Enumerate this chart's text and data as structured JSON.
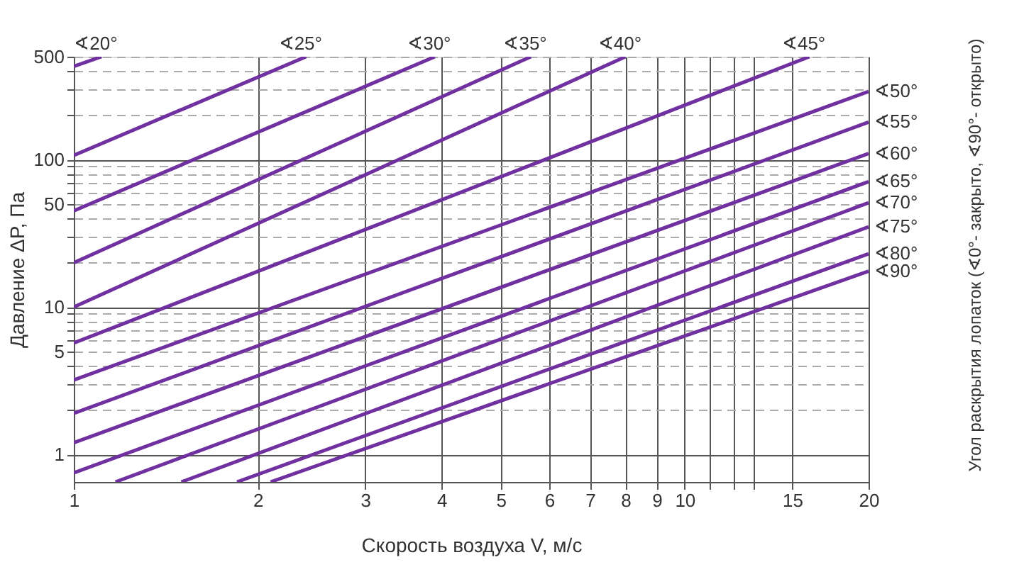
{
  "chart_data": {
    "type": "line",
    "xlabel": "Скорость воздуха V, м/с",
    "ylabel": "Давление ΔP, Па",
    "annotations": [
      "Угол раскрытия лопаток (∢0°- закрыто, ∢90°- открыто)"
    ],
    "log": "xy",
    "grid": true,
    "line_style": "solid",
    "marker": "none",
    "xlim": [
      1,
      20
    ],
    "ylim": [
      0.65,
      500
    ],
    "xticks": [
      1,
      2,
      3,
      4,
      5,
      6,
      7,
      8,
      9,
      10,
      {
        "value": 11,
        "label": null
      },
      {
        "value": 12,
        "label": null
      },
      {
        "value": 13,
        "label": null
      },
      15,
      20
    ],
    "yticks": [
      1,
      {
        "value": 2,
        "label": null
      },
      {
        "value": 3,
        "label": null
      },
      {
        "value": 4,
        "label": null
      },
      5,
      {
        "value": 6,
        "label": null
      },
      {
        "value": 7,
        "label": null
      },
      {
        "value": 8,
        "label": null
      },
      {
        "value": 9,
        "label": null
      },
      10,
      {
        "value": 20,
        "label": null
      },
      {
        "value": 30,
        "label": null
      },
      {
        "value": 40,
        "label": null
      },
      50,
      {
        "value": 60,
        "label": null
      },
      {
        "value": 70,
        "label": null
      },
      {
        "value": 80,
        "label": null
      },
      {
        "value": 90,
        "label": null
      },
      100,
      {
        "value": 200,
        "label": null
      },
      {
        "value": 300,
        "label": null
      },
      {
        "value": 400,
        "label": null
      },
      500
    ],
    "series": [
      {
        "name": "∢20°",
        "color": "#7030a0",
        "x": [
          1,
          1.11
        ],
        "values": [
          430,
          500
        ]
      },
      {
        "name": "∢25°",
        "color": "#7030a0",
        "x": [
          1,
          2.4
        ],
        "values": [
          107,
          500
        ]
      },
      {
        "name": "∢30°",
        "color": "#7030a0",
        "x": [
          1,
          3.9
        ],
        "values": [
          45,
          500
        ]
      },
      {
        "name": "∢35°",
        "color": "#7030a0",
        "x": [
          1,
          5.6
        ],
        "values": [
          20,
          500
        ]
      },
      {
        "name": "∢40°",
        "color": "#7030a0",
        "x": [
          1,
          8
        ],
        "values": [
          10,
          500
        ]
      },
      {
        "name": "∢45°",
        "color": "#7030a0",
        "x": [
          1,
          16
        ],
        "values": [
          5.7,
          500
        ]
      },
      {
        "name": "∢50°",
        "color": "#7030a0",
        "x": [
          1,
          20
        ],
        "values": [
          3.2,
          290
        ]
      },
      {
        "name": "∢55°",
        "color": "#7030a0",
        "x": [
          1,
          20
        ],
        "values": [
          1.9,
          180
        ]
      },
      {
        "name": "∢60°",
        "color": "#7030a0",
        "x": [
          1,
          20
        ],
        "values": [
          1.2,
          110
        ]
      },
      {
        "name": "∢65°",
        "color": "#7030a0",
        "x": [
          1,
          20
        ],
        "values": [
          0.75,
          71
        ]
      },
      {
        "name": "∢70°",
        "color": "#7030a0",
        "x": [
          1.17,
          20
        ],
        "values": [
          0.65,
          51
        ]
      },
      {
        "name": "∢75°",
        "color": "#7030a0",
        "x": [
          1.5,
          20
        ],
        "values": [
          0.65,
          35
        ]
      },
      {
        "name": "∢80°",
        "color": "#7030a0",
        "x": [
          1.85,
          20
        ],
        "values": [
          0.65,
          23
        ]
      },
      {
        "name": "∢90°",
        "color": "#7030a0",
        "x": [
          2.1,
          20
        ],
        "values": [
          0.65,
          17.5
        ]
      }
    ]
  }
}
